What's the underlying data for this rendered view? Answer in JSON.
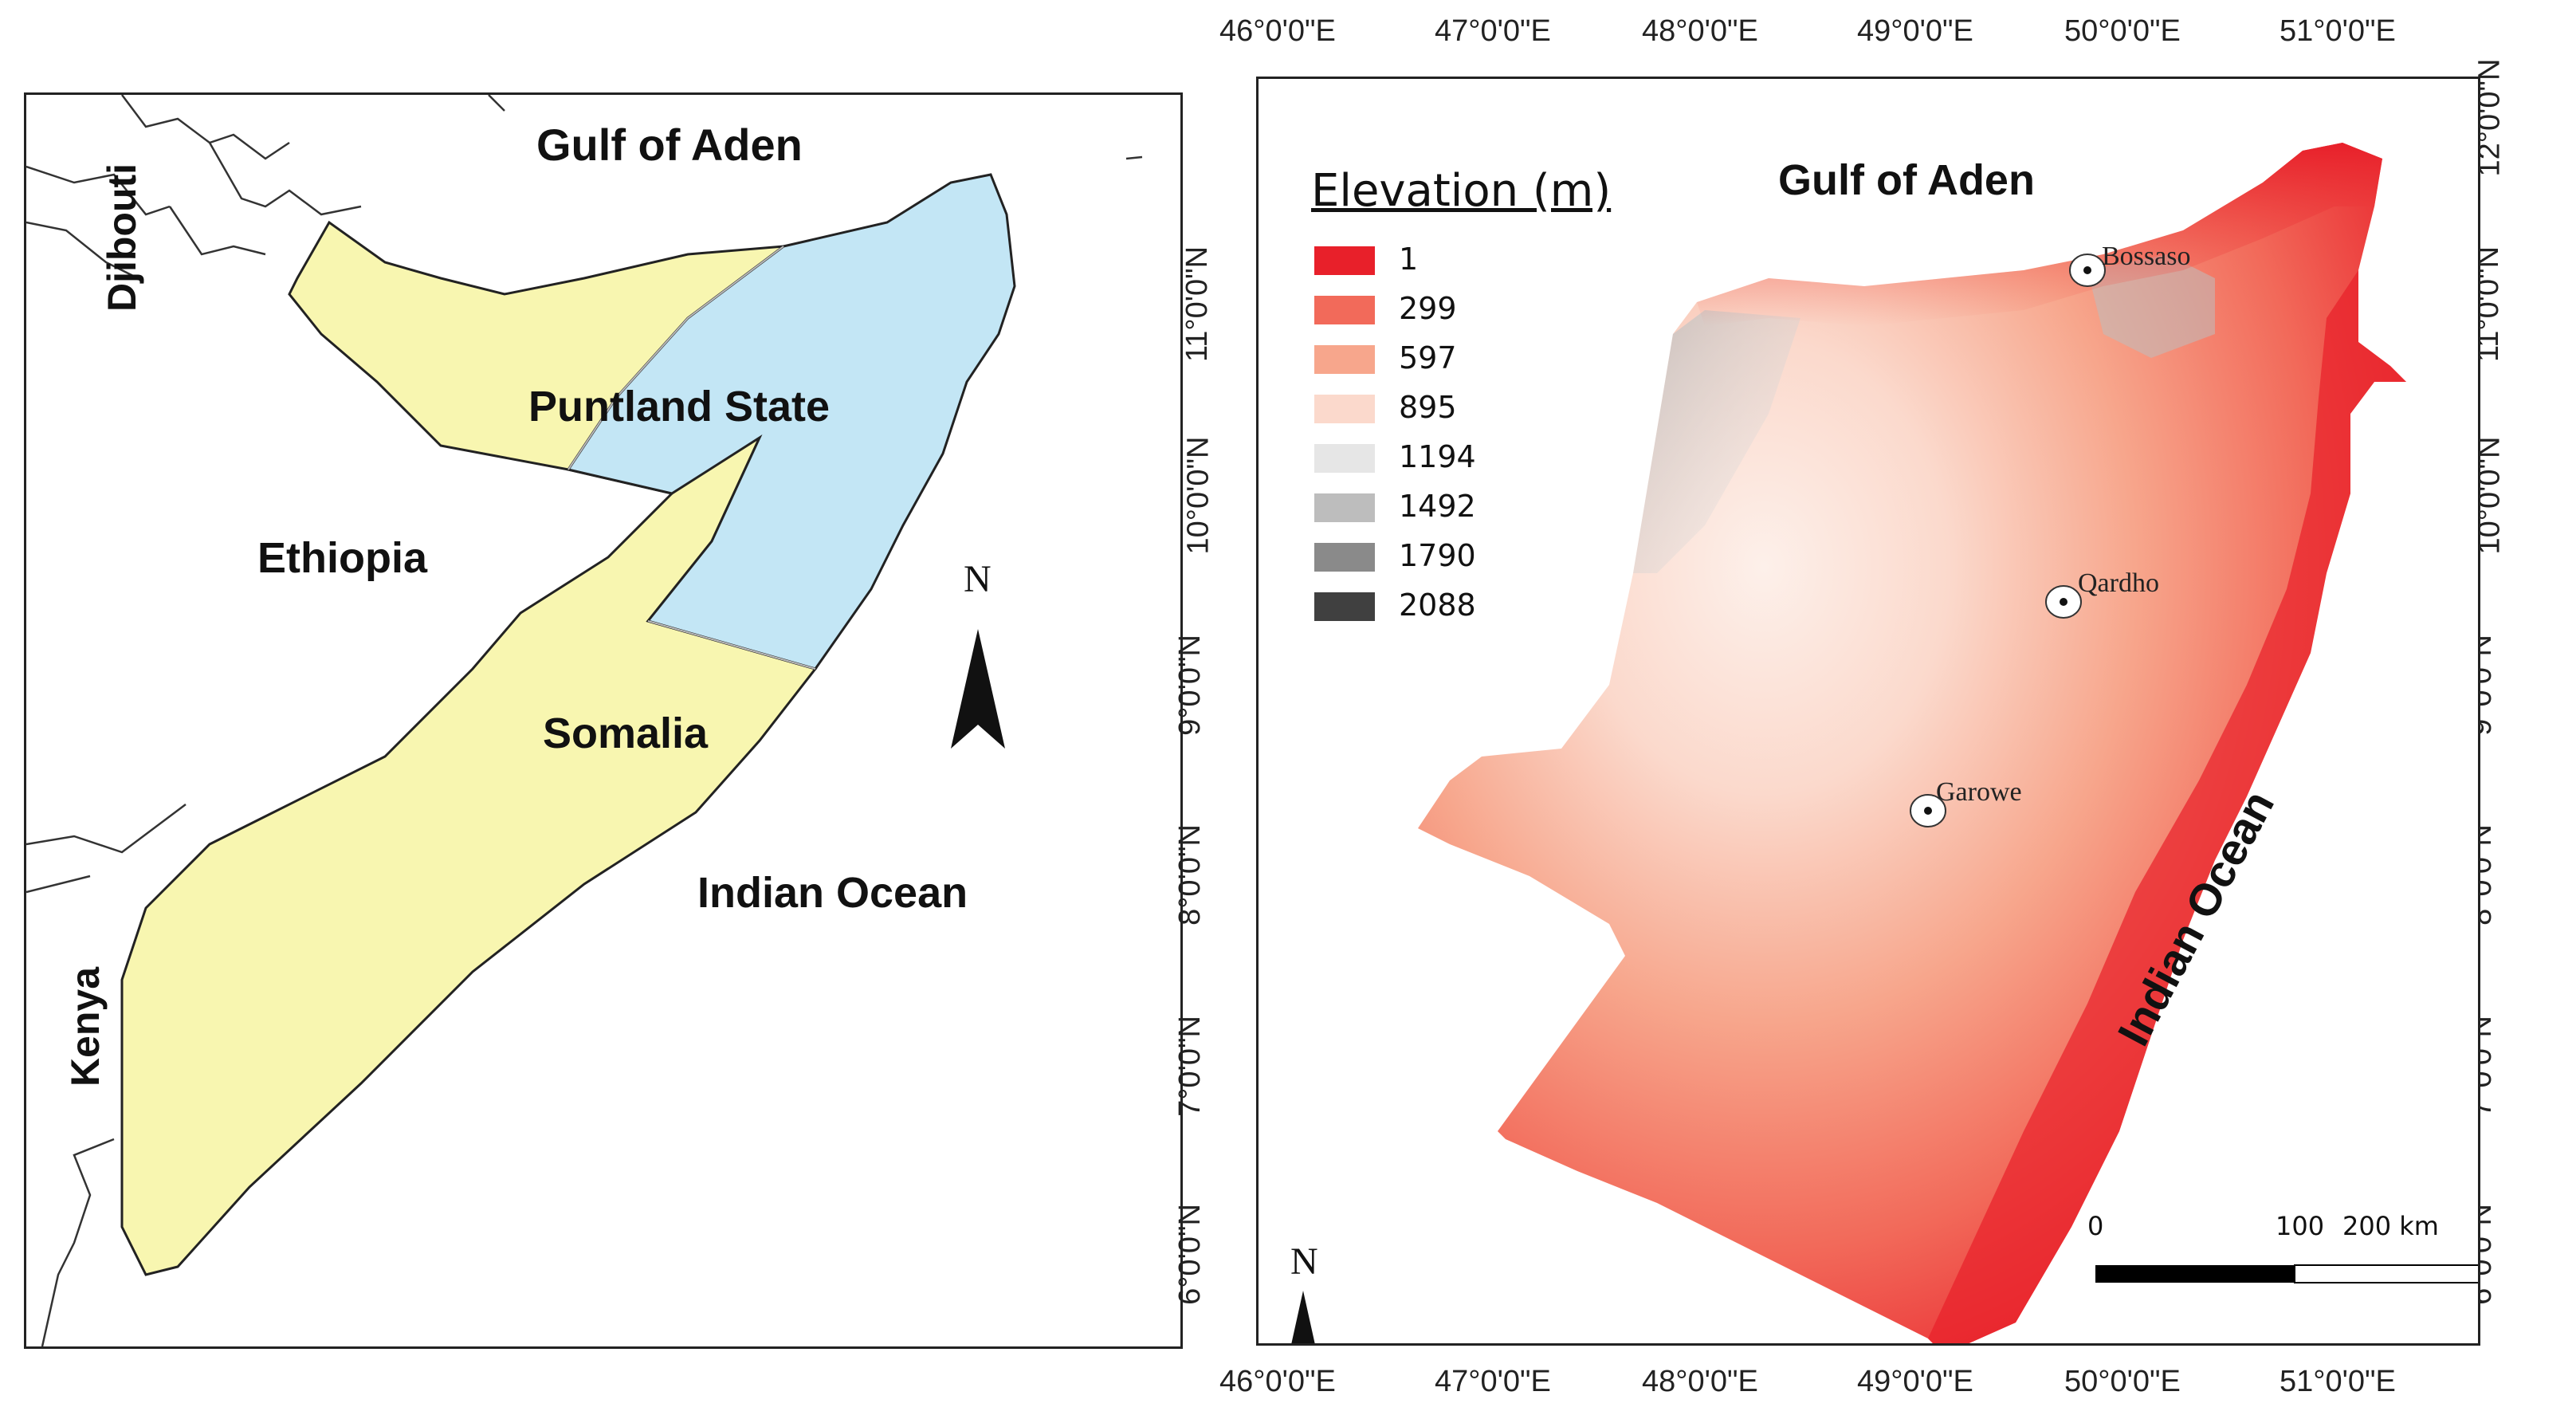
{
  "left_map": {
    "labels": {
      "gulf": "Gulf of Aden",
      "djibouti": "Djibouti",
      "ethiopia": "Ethiopia",
      "puntland": "Puntland State",
      "somalia": "Somalia",
      "indian_ocean": "Indian Ocean",
      "kenya": "Kenya"
    },
    "north": "N",
    "colors": {
      "somalia_fill": "#f8f6b0",
      "puntland_fill": "#c3e6f5",
      "border": "#222222"
    }
  },
  "right_map": {
    "labels": {
      "gulf": "Gulf of Aden",
      "indian_ocean": "Indian Ocean"
    },
    "legend": {
      "title": "Elevation (m)",
      "items": [
        {
          "label": "1",
          "color": "#e8202a"
        },
        {
          "label": "299",
          "color": "#f26a5a"
        },
        {
          "label": "597",
          "color": "#f7a68c"
        },
        {
          "label": "895",
          "color": "#fbd9cc"
        },
        {
          "label": "1194",
          "color": "#e6e6e6"
        },
        {
          "label": "1492",
          "color": "#bdbdbd"
        },
        {
          "label": "1790",
          "color": "#8a8a8a"
        },
        {
          "label": "2088",
          "color": "#404040"
        }
      ]
    },
    "towns": [
      "Bossaso",
      "Qardho",
      "Garowe"
    ],
    "x_ticks": [
      "46°0'0\"E",
      "47°0'0\"E",
      "48°0'0\"E",
      "49°0'0\"E",
      "50°0'0\"E",
      "51°0'0\"E"
    ],
    "y_ticks": [
      "12°0'0\"N",
      "11°0'0\"N",
      "10°0'0\"N",
      "9°0'0\"N",
      "8°0'0\"N",
      "7°0'0\"N",
      "6°0'0\"N"
    ],
    "scale": {
      "labels": [
        "0",
        "100",
        "200 km"
      ]
    },
    "north": "N"
  }
}
